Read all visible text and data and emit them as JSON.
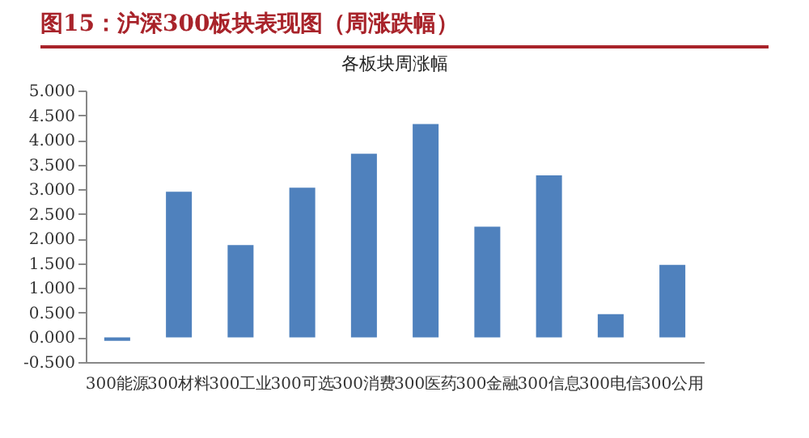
{
  "chart_data": {
    "type": "bar",
    "title": "图15：沪深300板块表现图（周涨跌幅）",
    "subtitle": "各板块周涨幅",
    "categories": [
      "300能源",
      "300材料",
      "300工业",
      "300可选",
      "300消费",
      "300医药",
      "300金融",
      "300信息",
      "300电信",
      "300公用"
    ],
    "values": [
      -0.07,
      2.95,
      1.87,
      3.03,
      3.72,
      4.32,
      2.24,
      3.28,
      0.47,
      1.47
    ],
    "color": "#4f81bd",
    "ylim": [
      -0.5,
      5
    ],
    "yticks": [
      {
        "value": -0.5,
        "label": "-0.500"
      },
      {
        "value": 0,
        "label": "0.000"
      },
      {
        "value": 0.5,
        "label": "0.500"
      },
      {
        "value": 1,
        "label": "1.000"
      },
      {
        "value": 1.5,
        "label": "1.500"
      },
      {
        "value": 2,
        "label": "2.000"
      },
      {
        "value": 2.5,
        "label": "2.500"
      },
      {
        "value": 3,
        "label": "3.000"
      },
      {
        "value": 3.5,
        "label": "3.500"
      },
      {
        "value": 4,
        "label": "4.000"
      },
      {
        "value": 4.5,
        "label": "4.500"
      },
      {
        "value": 5,
        "label": "5.000"
      }
    ],
    "grid": false
  }
}
